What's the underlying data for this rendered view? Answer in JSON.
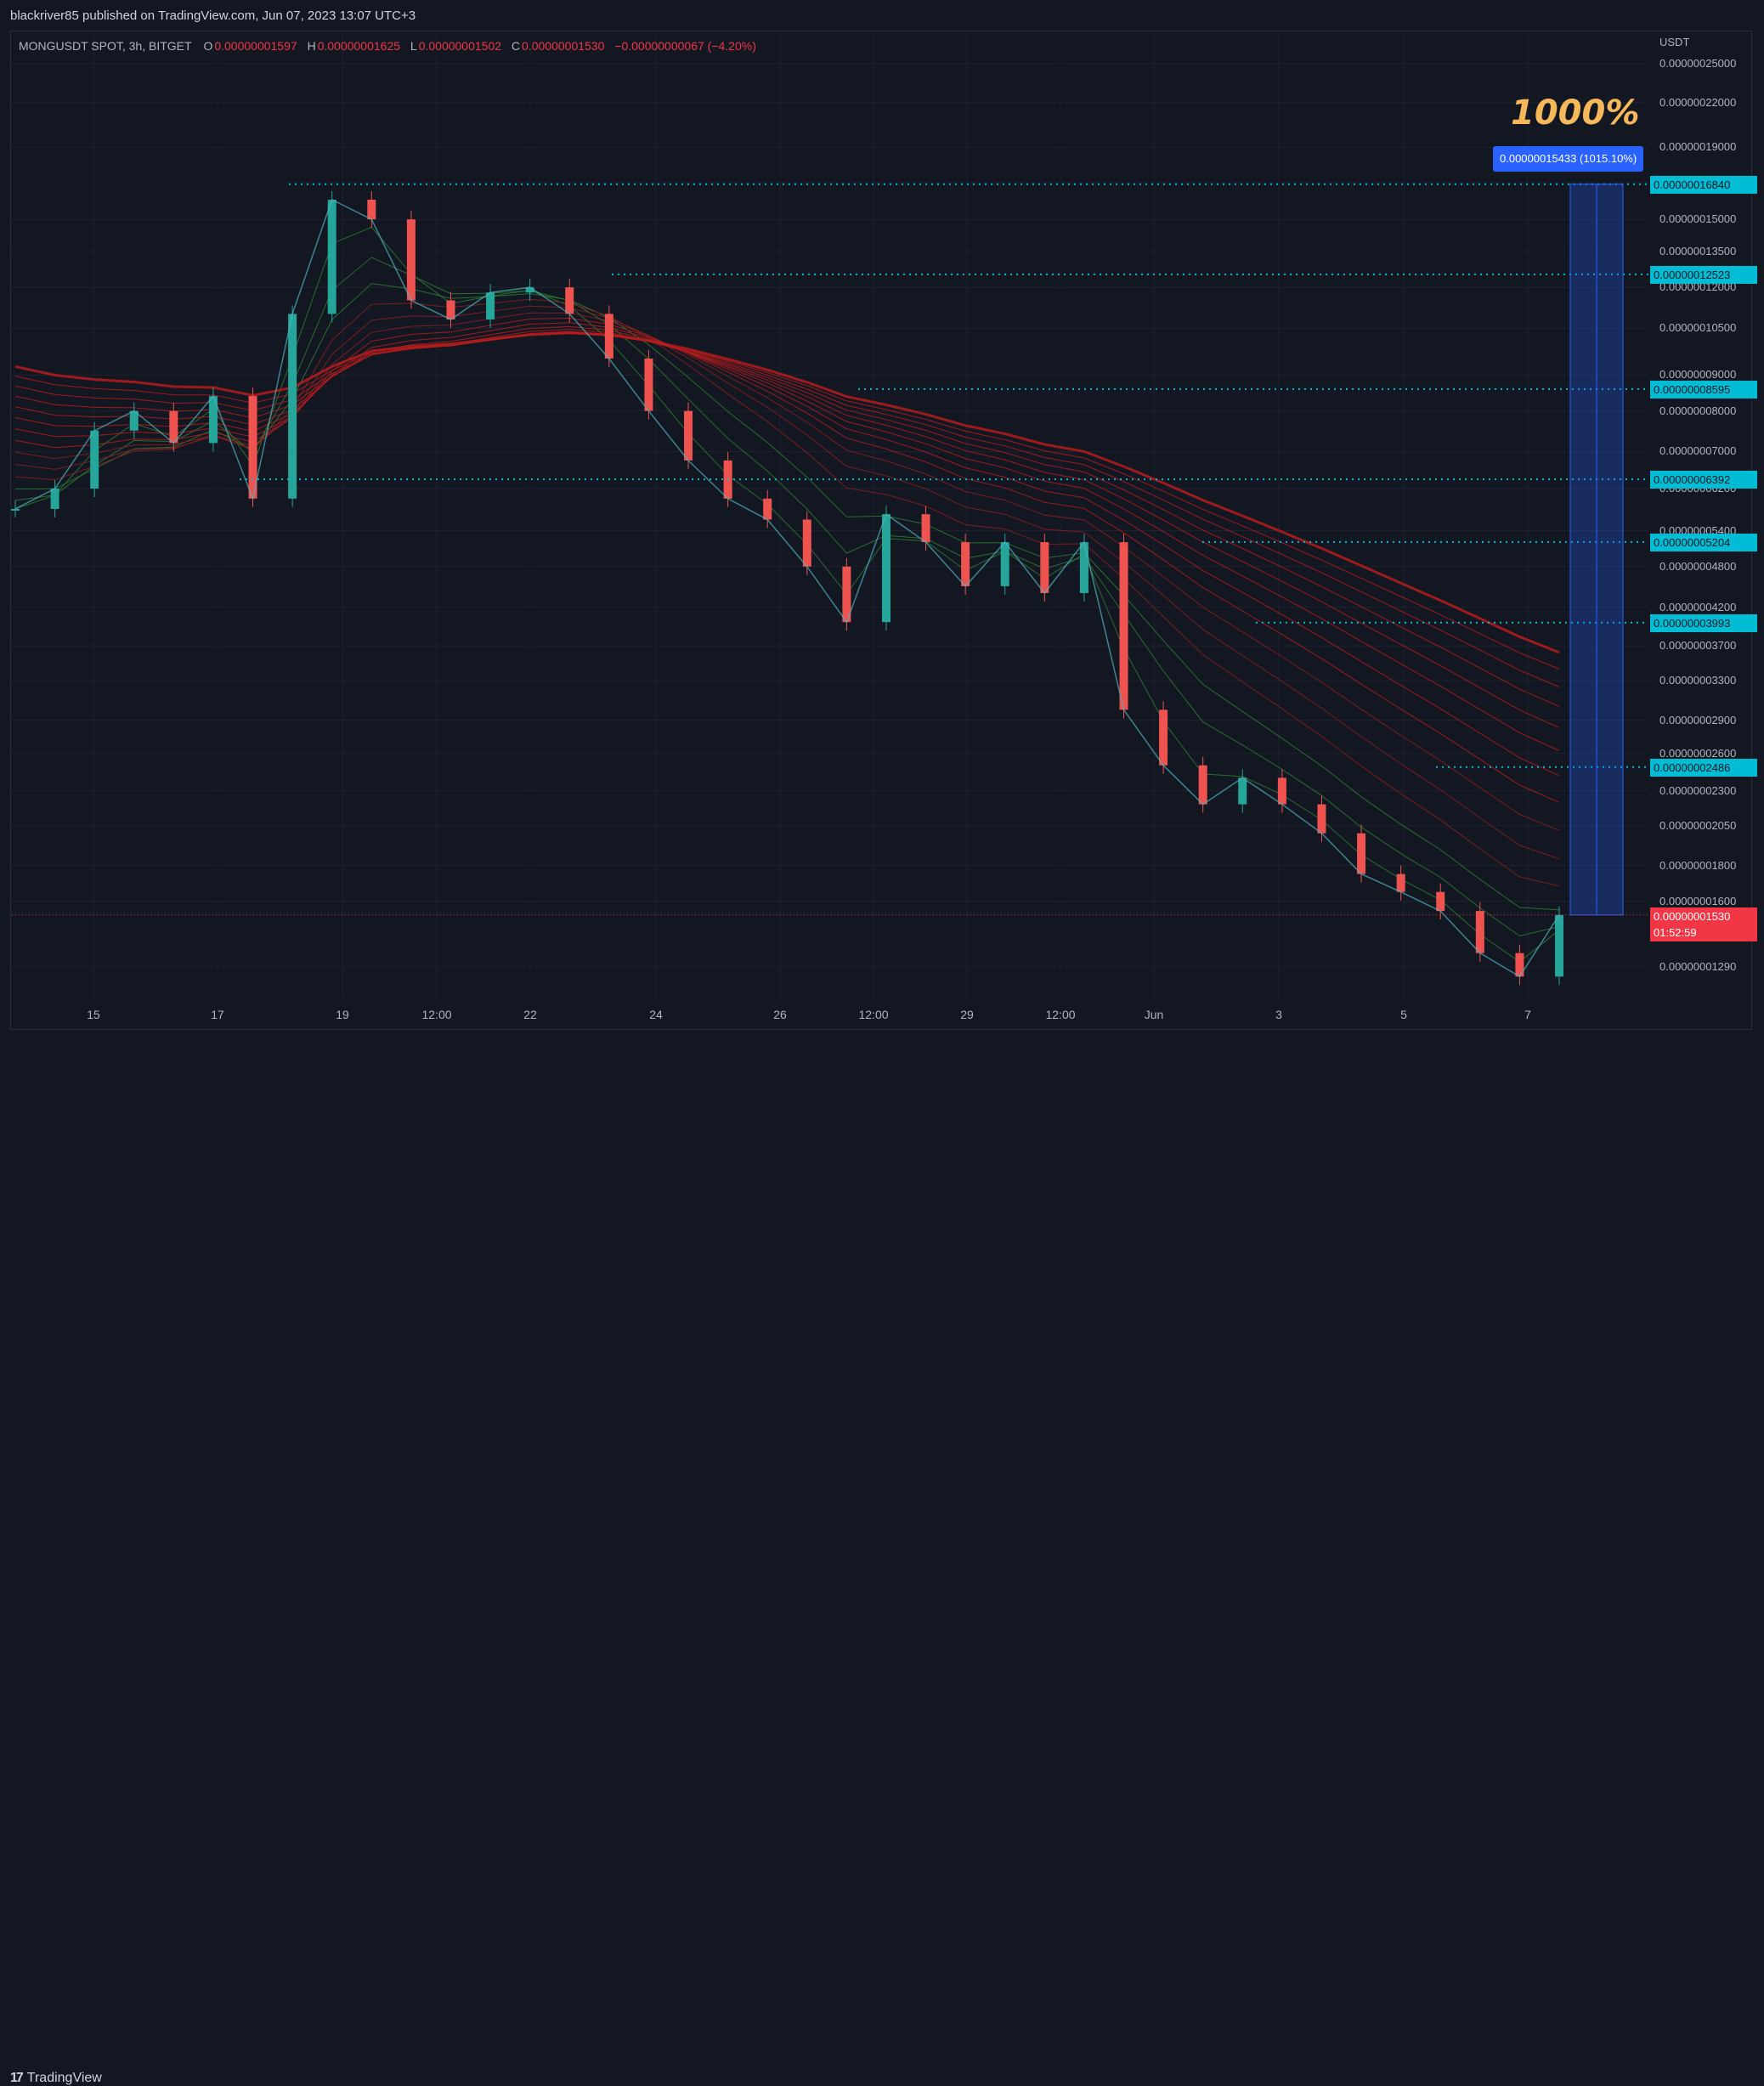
{
  "publisher_line": "blackriver85 published on TradingView.com, Jun 07, 2023 13:07 UTC+3",
  "footer": {
    "brand": "TradingView",
    "logo_icon": "tradingview-logo-icon"
  },
  "legend": {
    "symbol": "MONGUSDT SPOT, 3h, BITGET",
    "open_label": "O",
    "open": "0.00000001597",
    "high_label": "H",
    "high": "0.00000001625",
    "low_label": "L",
    "low": "0.00000001502",
    "close_label": "C",
    "close": "0.00000001530",
    "change": "−0.00000000067 (−4.20%)"
  },
  "colors": {
    "background": "#131722",
    "up": "#26a69a",
    "down": "#ef5350",
    "level_line": "#00bcd4",
    "ema_ribbon": "#d32f2f",
    "measure": "#2962ff",
    "callout": "#f5b85a"
  },
  "callout_text": "1000%",
  "measure_label": "0.00000015433 (1015.10%)",
  "last_price": {
    "price": "0.00000001530",
    "countdown": "01:52:59"
  },
  "chart_data": {
    "type": "line",
    "title": "MONGUSDT SPOT, 3h, BITGET",
    "y_unit": "USDT",
    "y_scale": "log",
    "y_ticks": [
      "0.00000025000",
      "0.00000022000",
      "0.00000019000",
      "0.00000015000",
      "0.00000013500",
      "0.00000012000",
      "0.00000010500",
      "0.00000009000",
      "0.00000008000",
      "0.00000007000",
      "0.00000006200",
      "0.00000005400",
      "0.00000004800",
      "0.00000004200",
      "0.00000003700",
      "0.00000003300",
      "0.00000002900",
      "0.00000002600",
      "0.00000002300",
      "0.00000002050",
      "0.00000001800",
      "0.00000001600",
      "0.00000001290"
    ],
    "x_ticks": [
      "15",
      "17",
      "19",
      "12:00",
      "22",
      "24",
      "26",
      "12:00",
      "29",
      "12:00",
      "Jun",
      "3",
      "5",
      "7"
    ],
    "horizontal_levels": [
      "0.00000016840",
      "0.00000012523",
      "0.00000008595",
      "0.00000006392",
      "0.00000005204",
      "0.00000003993",
      "0.00000002486"
    ],
    "series": [
      {
        "name": "",
        "kind": "close_approx",
        "points": [
          [
            0,
            5.8e-08
          ],
          [
            1,
            6.2e-08
          ],
          [
            2,
            7.5e-08
          ],
          [
            3,
            8e-08
          ],
          [
            4,
            7.2e-08
          ],
          [
            5,
            8.4e-08
          ],
          [
            6,
            6e-08
          ],
          [
            7,
            1.1e-07
          ],
          [
            8,
            1.6e-07
          ],
          [
            9,
            1.5e-07
          ],
          [
            10,
            1.15e-07
          ],
          [
            11,
            1.08e-07
          ],
          [
            12,
            1.18e-07
          ],
          [
            13,
            1.2e-07
          ],
          [
            14,
            1.1e-07
          ],
          [
            15,
            9.5e-08
          ],
          [
            16,
            8e-08
          ],
          [
            17,
            6.8e-08
          ],
          [
            18,
            6e-08
          ],
          [
            19,
            5.6e-08
          ],
          [
            20,
            4.8e-08
          ],
          [
            21,
            4e-08
          ],
          [
            22,
            5.7e-08
          ],
          [
            23,
            5.2e-08
          ],
          [
            24,
            4.5e-08
          ],
          [
            25,
            5.2e-08
          ],
          [
            26,
            4.4e-08
          ],
          [
            27,
            5.2e-08
          ],
          [
            28,
            3e-08
          ],
          [
            29,
            2.5e-08
          ],
          [
            30,
            2.2e-08
          ],
          [
            31,
            2.4e-08
          ],
          [
            32,
            2.2e-08
          ],
          [
            33,
            2e-08
          ],
          [
            34,
            1.75e-08
          ],
          [
            35,
            1.65e-08
          ],
          [
            36,
            1.55e-08
          ],
          [
            37,
            1.35e-08
          ],
          [
            38,
            1.25e-08
          ],
          [
            39,
            1.53e-08
          ]
        ]
      }
    ]
  }
}
